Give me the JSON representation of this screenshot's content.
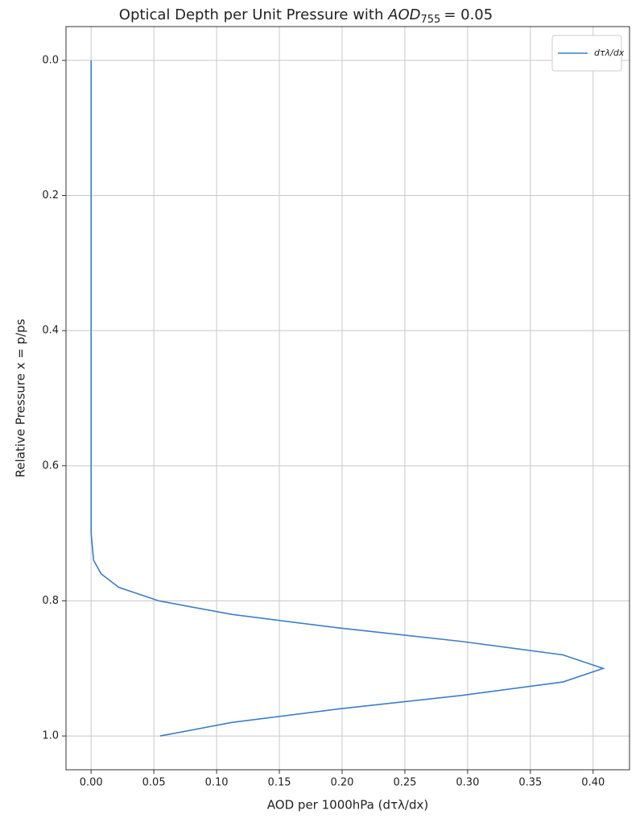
{
  "chart_data": {
    "type": "line",
    "title": "Optical Depth per Unit Pressure with",
    "title_math": {
      "base": "AOD",
      "sub": "755",
      "rest": "= 0.05"
    },
    "xlabel": "AOD per 1000hPa (dτλ/dx)",
    "ylabel": "Relative Pressure x = p/ps",
    "series": [
      {
        "name": "dτλ/dx",
        "color": "#3b7fc4",
        "y": [
          0.0,
          0.5,
          0.65,
          0.7,
          0.72,
          0.74,
          0.76,
          0.78,
          0.8,
          0.82,
          0.84,
          0.86,
          0.88,
          0.9,
          0.92,
          0.94,
          0.96,
          0.98,
          1.0
        ],
        "x": [
          0.0,
          0.0,
          0.0,
          0.0,
          0.001,
          0.002,
          0.008,
          0.022,
          0.054,
          0.112,
          0.197,
          0.295,
          0.376,
          0.408,
          0.376,
          0.295,
          0.197,
          0.112,
          0.055
        ]
      }
    ],
    "xlim": [
      -0.02,
      0.429
    ],
    "ylim": [
      1.05,
      -0.05
    ],
    "y_inverted": true,
    "xticks": [
      {
        "value": 0,
        "label": "0.00"
      },
      0.05,
      {
        "value": 0.1,
        "label": "0.10"
      },
      0.15,
      {
        "value": 0.2,
        "label": "0.20"
      },
      0.25,
      {
        "value": 0.3,
        "label": "0.30"
      },
      0.35,
      {
        "value": 0.4,
        "label": "0.40"
      }
    ],
    "yticks": [
      {
        "value": 0,
        "label": "0.0"
      },
      0.2,
      0.4,
      0.6,
      0.8,
      {
        "value": 1,
        "label": "1.0"
      }
    ],
    "grid": true,
    "legend": "upper right"
  }
}
